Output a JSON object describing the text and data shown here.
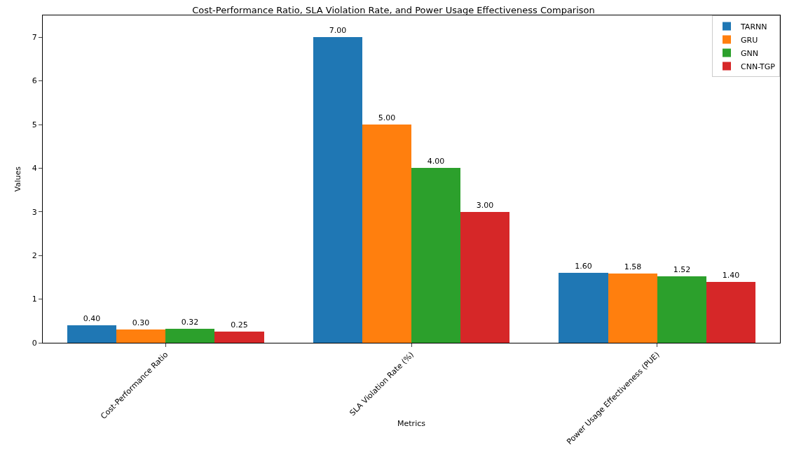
{
  "chart_data": {
    "type": "bar",
    "title": "Cost-Performance Ratio, SLA Violation Rate, and Power Usage Effectiveness Comparison",
    "xlabel": "Metrics",
    "ylabel": "Values",
    "categories": [
      "Cost-Performance Ratio",
      "SLA Violation Rate (%)",
      "Power Usage Effectiveness (PUE)"
    ],
    "series": [
      {
        "name": "TARNN",
        "color": "#1f77b4",
        "values": [
          0.4,
          7,
          1.6
        ],
        "value_labels": [
          "0.40",
          "7.00",
          "1.60"
        ]
      },
      {
        "name": "GRU",
        "color": "#ff7f0e",
        "values": [
          0.3,
          5,
          1.58
        ],
        "value_labels": [
          "0.30",
          "5.00",
          "1.58"
        ]
      },
      {
        "name": "GNN",
        "color": "#2ca02c",
        "values": [
          0.32,
          4,
          1.52
        ],
        "value_labels": [
          "0.32",
          "4.00",
          "1.52"
        ]
      },
      {
        "name": "CNN-TGP",
        "color": "#d62728",
        "values": [
          0.25,
          3,
          1.4
        ],
        "value_labels": [
          "0.25",
          "3.00",
          "1.40"
        ]
      }
    ],
    "ylim": [
      0,
      7.5
    ],
    "yticks": [
      0,
      1,
      2,
      3,
      4,
      5,
      6,
      7
    ],
    "grid": false,
    "legend": "top right"
  }
}
